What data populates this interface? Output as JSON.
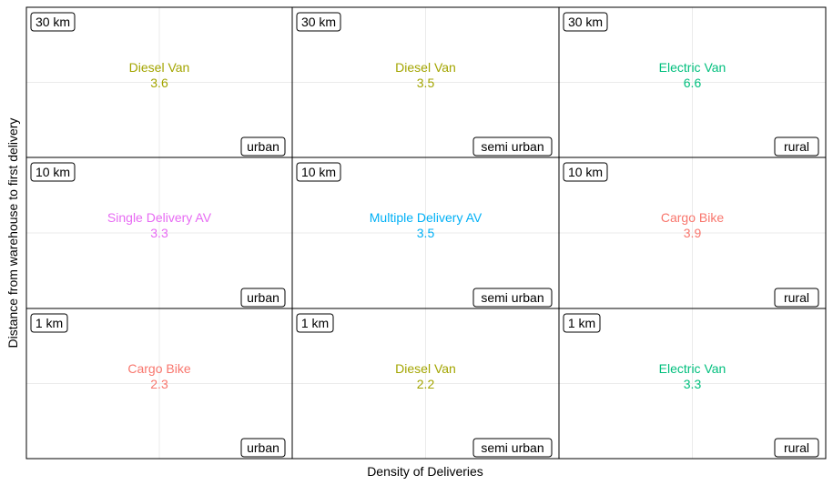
{
  "chart_data": {
    "type": "table",
    "title": "",
    "xlabel": "Density of Deliveries",
    "ylabel": "Distance from warehouse to first delivery",
    "columns": [
      "urban",
      "semi urban",
      "rural"
    ],
    "rows": [
      "30 km",
      "10 km",
      "1 km"
    ],
    "grid": true,
    "cells": [
      {
        "distance": "30 km",
        "density": "urban",
        "vehicle": "Diesel Van",
        "value": 3.6,
        "color": "#A3A500"
      },
      {
        "distance": "30 km",
        "density": "semi urban",
        "vehicle": "Diesel Van",
        "value": 3.5,
        "color": "#A3A500"
      },
      {
        "distance": "30 km",
        "density": "rural",
        "vehicle": "Electric Van",
        "value": 6.6,
        "color": "#00BF7D"
      },
      {
        "distance": "10 km",
        "density": "urban",
        "vehicle": "Single Delivery AV",
        "value": 3.3,
        "color": "#E76BF3"
      },
      {
        "distance": "10 km",
        "density": "semi urban",
        "vehicle": "Multiple Delivery AV",
        "value": 3.5,
        "color": "#00B0F6"
      },
      {
        "distance": "10 km",
        "density": "rural",
        "vehicle": "Cargo Bike",
        "value": 3.9,
        "color": "#F8766D"
      },
      {
        "distance": "1 km",
        "density": "urban",
        "vehicle": "Cargo Bike",
        "value": 2.3,
        "color": "#F8766D"
      },
      {
        "distance": "1 km",
        "density": "semi urban",
        "vehicle": "Diesel Van",
        "value": 2.2,
        "color": "#A3A500"
      },
      {
        "distance": "1 km",
        "density": "rural",
        "vehicle": "Electric Van",
        "value": 3.3,
        "color": "#00BF7D"
      }
    ]
  }
}
